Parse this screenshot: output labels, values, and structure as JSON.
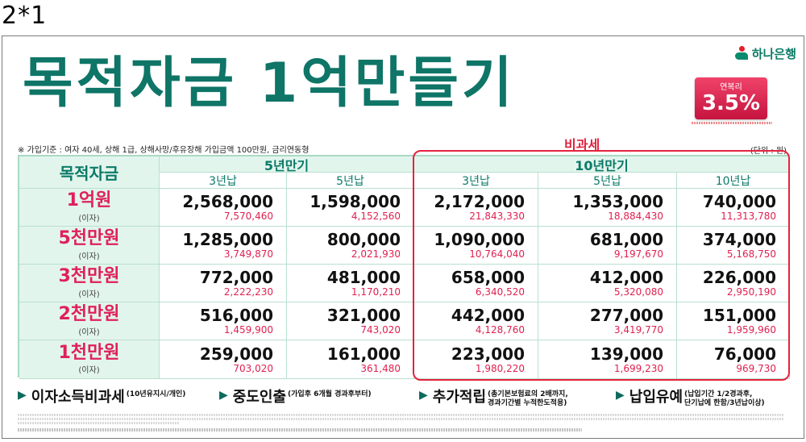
{
  "corner_label": "2*1",
  "logo": {
    "text": "하나은행",
    "icon": "hana-bank-logo-icon"
  },
  "title": "목적자금 1억만들기",
  "rate": {
    "label": "연복리",
    "value": "3.5%"
  },
  "basis": "※ 가입기준 : 여자 40세, 상해 1급, 상해사망/후유장해 가입금액 100만원, 금리연동형",
  "tax_free_label": "비과세",
  "unit": "(단위 : 원)",
  "table": {
    "corner": "목적자금",
    "groups": [
      "5년만기",
      "10년만기"
    ],
    "sub_headers": [
      "3년납",
      "5년납",
      "3년납",
      "5년납",
      "10년납"
    ],
    "interest_label": "(이자)",
    "rows": [
      {
        "amount": "1억원",
        "cells": [
          {
            "pay": "2,568,000",
            "interest": "7,570,460"
          },
          {
            "pay": "1,598,000",
            "interest": "4,152,560"
          },
          {
            "pay": "2,172,000",
            "interest": "21,843,330"
          },
          {
            "pay": "1,353,000",
            "interest": "18,884,430"
          },
          {
            "pay": "740,000",
            "interest": "11,313,780"
          }
        ]
      },
      {
        "amount": "5천만원",
        "cells": [
          {
            "pay": "1,285,000",
            "interest": "3,749,870"
          },
          {
            "pay": "800,000",
            "interest": "2,021,930"
          },
          {
            "pay": "1,090,000",
            "interest": "10,764,040"
          },
          {
            "pay": "681,000",
            "interest": "9,197,670"
          },
          {
            "pay": "374,000",
            "interest": "5,168,750"
          }
        ]
      },
      {
        "amount": "3천만원",
        "cells": [
          {
            "pay": "772,000",
            "interest": "2,222,230"
          },
          {
            "pay": "481,000",
            "interest": "1,170,210"
          },
          {
            "pay": "658,000",
            "interest": "6,340,520"
          },
          {
            "pay": "412,000",
            "interest": "5,320,080"
          },
          {
            "pay": "226,000",
            "interest": "2,950,190"
          }
        ]
      },
      {
        "amount": "2천만원",
        "cells": [
          {
            "pay": "516,000",
            "interest": "1,459,900"
          },
          {
            "pay": "321,000",
            "interest": "743,020"
          },
          {
            "pay": "442,000",
            "interest": "4,128,760"
          },
          {
            "pay": "277,000",
            "interest": "3,419,770"
          },
          {
            "pay": "151,000",
            "interest": "1,959,960"
          }
        ]
      },
      {
        "amount": "1천만원",
        "cells": [
          {
            "pay": "259,000",
            "interest": "703,020"
          },
          {
            "pay": "161,000",
            "interest": "361,480"
          },
          {
            "pay": "223,000",
            "interest": "1,980,220"
          },
          {
            "pay": "139,000",
            "interest": "1,699,230"
          },
          {
            "pay": "76,000",
            "interest": "969,730"
          }
        ]
      }
    ]
  },
  "features": [
    {
      "name": "이자소득비과세",
      "desc": [
        "(10년유지시/개인)"
      ]
    },
    {
      "name": "중도인출",
      "desc": [
        "(가입후 6개월 경과후부터)"
      ]
    },
    {
      "name": "추가적립",
      "desc": [
        "(총기본보험료의 2배까지,",
        "경과기간별 누적한도적용)"
      ]
    },
    {
      "name": "납입유예",
      "desc": [
        "(납입기간 1/2경과후,",
        "단기납에 한함/3년납이상)"
      ]
    }
  ]
}
